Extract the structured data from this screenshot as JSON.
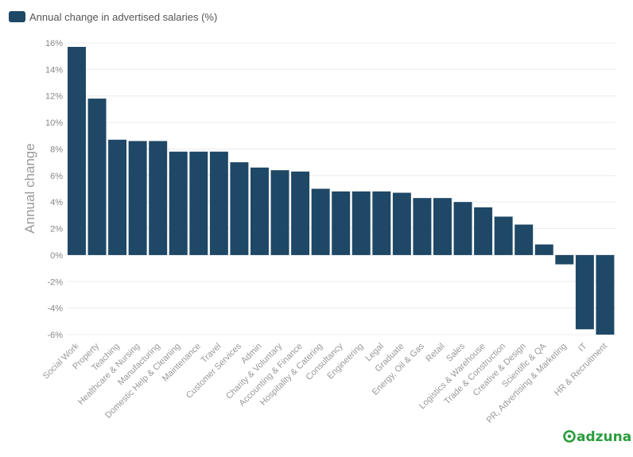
{
  "chart_data": {
    "type": "bar",
    "categories": [
      "Social Work",
      "Property",
      "Teaching",
      "Healthcare & Nursing",
      "Manufacturing",
      "Domestic Help & Cleaning",
      "Maintenance",
      "Travel",
      "Customer Services",
      "Admin",
      "Charity & Voluntary",
      "Accounting & Finance",
      "Hospitality & Catering",
      "Consultancy",
      "Engineering",
      "Legal",
      "Graduate",
      "Energy, Oil & Gas",
      "Retail",
      "Sales",
      "Logistics & Warehouse",
      "Trade & Construction",
      "Creative & Design",
      "Scientific & QA",
      "PR, Advertising & Marketing",
      "IT",
      "HR & Recruitment"
    ],
    "series": [
      {
        "name": "Annual change in advertised salaries (%)",
        "values": [
          15.7,
          11.8,
          8.7,
          8.6,
          8.6,
          7.8,
          7.8,
          7.8,
          7.0,
          6.6,
          6.4,
          6.3,
          5.0,
          4.8,
          4.8,
          4.8,
          4.7,
          4.3,
          4.3,
          4.0,
          3.6,
          2.9,
          2.3,
          0.8,
          -0.7,
          -5.6,
          -6.0
        ]
      }
    ],
    "ylabel": "Annual change",
    "xlabel": "",
    "ylim": [
      -6,
      16
    ],
    "yticks": [
      "-6%",
      "-4%",
      "-2%",
      "0%",
      "2%",
      "4%",
      "6%",
      "8%",
      "10%",
      "12%",
      "14%",
      "16%"
    ],
    "grid": true,
    "legend_position": "top-left",
    "colors": {
      "bar": "#1e4866",
      "grid": "#ececec",
      "brand": "#2a9d3c"
    }
  },
  "brand": {
    "name": "adzuna",
    "icon": "adzuna-logo-icon"
  }
}
